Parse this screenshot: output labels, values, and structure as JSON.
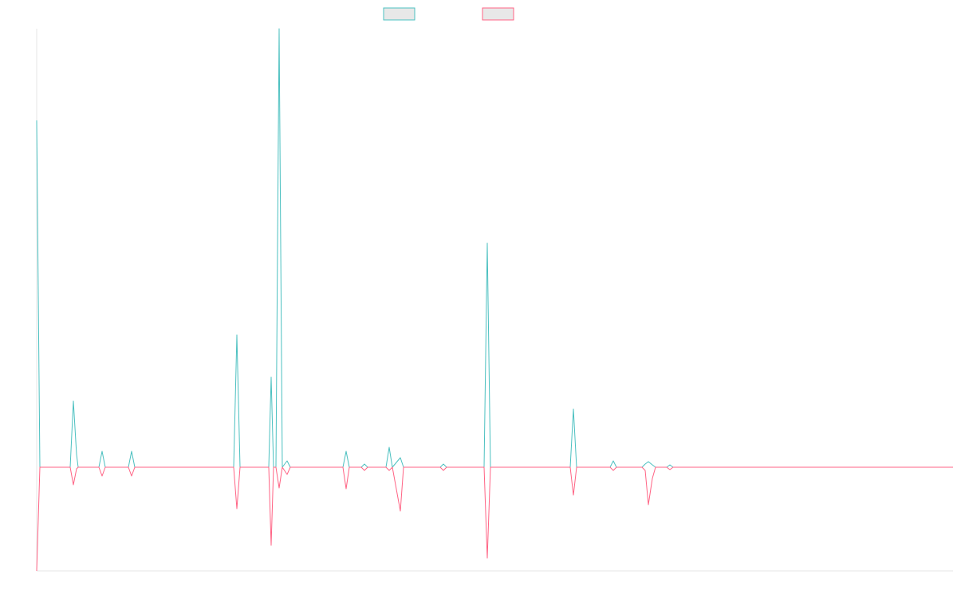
{
  "chart_data": {
    "type": "line",
    "x": [
      0,
      4,
      42,
      46,
      50,
      52,
      78,
      82,
      86,
      115,
      119,
      123,
      247,
      251,
      255,
      291,
      294,
      297,
      300,
      304,
      308,
      314,
      318,
      384,
      388,
      392,
      407,
      411,
      415,
      438,
      442,
      446,
      456,
      460,
      506,
      510,
      514,
      561,
      565,
      569,
      669,
      673,
      677,
      719,
      723,
      727,
      759,
      763,
      767,
      772,
      776,
      790,
      794,
      798,
      1149
    ],
    "series": [
      {
        "color": "#4bc0c0",
        "values": [
          435,
          0,
          0,
          83,
          16,
          0,
          0,
          20,
          0,
          0,
          20,
          0,
          0,
          166,
          0,
          0,
          113,
          0,
          0,
          550,
          0,
          8,
          0,
          0,
          20,
          0,
          0,
          4,
          0,
          0,
          25,
          0,
          12,
          0,
          0,
          4,
          0,
          0,
          281,
          0,
          0,
          73,
          0,
          0,
          8,
          0,
          0,
          4,
          7,
          3,
          0,
          0,
          3,
          0,
          0
        ]
      },
      {
        "color": "#ff6384",
        "values": [
          -130,
          0,
          0,
          -22,
          -2,
          0,
          0,
          -11,
          0,
          0,
          -11,
          0,
          0,
          -52,
          0,
          0,
          -98,
          0,
          0,
          -26,
          0,
          -9,
          0,
          0,
          -27,
          0,
          0,
          -4,
          0,
          0,
          -4,
          0,
          -55,
          0,
          0,
          -4,
          0,
          0,
          -114,
          0,
          0,
          -35,
          0,
          0,
          -4,
          0,
          0,
          -4,
          -47,
          -14,
          0,
          0,
          -3,
          0,
          0
        ]
      }
    ],
    "xlim": [
      0,
      1149
    ],
    "ylim": [
      -130,
      550
    ]
  }
}
